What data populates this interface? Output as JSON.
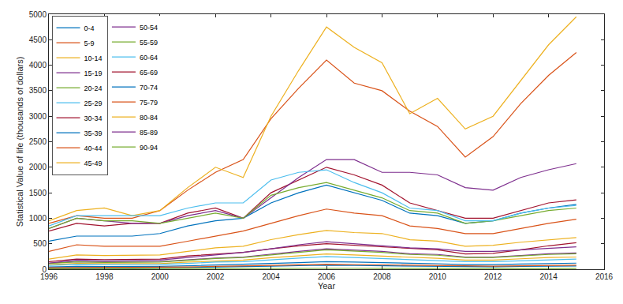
{
  "chart_data": {
    "type": "line",
    "x_label": "Year",
    "y_label": "Statistical Value of life (thousands of dollars)",
    "x": [
      1996,
      1997,
      1998,
      1999,
      2000,
      2001,
      2002,
      2003,
      2004,
      2005,
      2006,
      2007,
      2008,
      2009,
      2010,
      2011,
      2012,
      2013,
      2014,
      2015
    ],
    "xlim": [
      1996,
      2016
    ],
    "xticks": [
      1996,
      1998,
      2000,
      2002,
      2004,
      2006,
      2008,
      2010,
      2012,
      2014,
      2016
    ],
    "ylim": [
      0,
      5000
    ],
    "yticks": [
      0,
      500,
      1000,
      1500,
      2000,
      2500,
      3000,
      3500,
      4000,
      4500,
      5000
    ],
    "grid": false,
    "legend": "upper left",
    "series": [
      {
        "name": "0-4",
        "color": "#0072BD",
        "values": [
          24,
          30,
          29,
          29,
          30,
          37,
          44,
          48,
          60,
          70,
          80,
          74,
          70,
          61,
          58,
          48,
          48,
          54,
          61,
          64
        ]
      },
      {
        "name": "5-9",
        "color": "#D95319",
        "values": [
          350,
          480,
          450,
          450,
          450,
          550,
          650,
          750,
          900,
          1050,
          1180,
          1100,
          1050,
          850,
          800,
          700,
          700,
          800,
          900,
          980
        ]
      },
      {
        "name": "10-14",
        "color": "#EDB120",
        "values": [
          90,
          115,
          110,
          110,
          110,
          140,
          165,
          180,
          225,
          260,
          300,
          280,
          260,
          230,
          215,
          180,
          180,
          205,
          230,
          240
        ]
      },
      {
        "name": "15-19",
        "color": "#7E2F8E",
        "values": [
          120,
          150,
          145,
          145,
          150,
          185,
          220,
          240,
          300,
          350,
          400,
          370,
          350,
          305,
          290,
          240,
          240,
          270,
          305,
          320
        ]
      },
      {
        "name": "20-24",
        "color": "#77AC30",
        "values": [
          115,
          145,
          135,
          135,
          140,
          175,
          210,
          230,
          285,
          330,
          380,
          355,
          330,
          290,
          275,
          230,
          230,
          260,
          290,
          305
        ]
      },
      {
        "name": "25-29",
        "color": "#4DBEEE",
        "values": [
          75,
          95,
          90,
          90,
          95,
          115,
          140,
          150,
          190,
          220,
          250,
          230,
          220,
          190,
          180,
          150,
          150,
          170,
          190,
          200
        ]
      },
      {
        "name": "30-34",
        "color": "#A2142F",
        "values": [
          750,
          900,
          850,
          900,
          900,
          1100,
          1200,
          1000,
          1500,
          1750,
          2000,
          1850,
          1650,
          1300,
          1150,
          1000,
          1000,
          1150,
          1300,
          1360
        ]
      },
      {
        "name": "35-39",
        "color": "#0072BD",
        "values": [
          550,
          650,
          650,
          650,
          700,
          850,
          950,
          1000,
          1300,
          1500,
          1650,
          1500,
          1350,
          1100,
          1050,
          900,
          950,
          1100,
          1200,
          1270
        ]
      },
      {
        "name": "40-44",
        "color": "#D95319",
        "values": [
          900,
          1050,
          1000,
          1000,
          1150,
          1550,
          1900,
          2150,
          2950,
          3550,
          4100,
          3650,
          3500,
          3100,
          2800,
          2200,
          2600,
          3250,
          3800,
          4250
        ]
      },
      {
        "name": "45-49",
        "color": "#EDB120",
        "values": [
          950,
          1150,
          1200,
          1050,
          1150,
          1600,
          2000,
          1800,
          3000,
          3900,
          4750,
          4350,
          4050,
          3050,
          3350,
          2750,
          3000,
          3700,
          4400,
          4950
        ]
      },
      {
        "name": "50-54",
        "color": "#7E2F8E",
        "values": [
          800,
          1000,
          950,
          900,
          900,
          1050,
          1150,
          1000,
          1400,
          1800,
          2150,
          2150,
          1900,
          1900,
          1850,
          1600,
          1550,
          1800,
          1950,
          2070
        ]
      },
      {
        "name": "55-59",
        "color": "#77AC30",
        "values": [
          800,
          1000,
          950,
          950,
          900,
          1000,
          1100,
          1000,
          1450,
          1600,
          1700,
          1550,
          1400,
          1150,
          1100,
          900,
          950,
          1050,
          1150,
          1200
        ]
      },
      {
        "name": "60-64",
        "color": "#4DBEEE",
        "values": [
          850,
          1050,
          1050,
          1050,
          1050,
          1200,
          1300,
          1300,
          1750,
          1900,
          1950,
          1700,
          1500,
          1200,
          1150,
          950,
          950,
          1100,
          1200,
          1250
        ]
      },
      {
        "name": "65-69",
        "color": "#A2142F",
        "values": [
          150,
          200,
          190,
          190,
          200,
          260,
          300,
          330,
          400,
          460,
          500,
          470,
          440,
          400,
          380,
          300,
          310,
          380,
          460,
          520
        ]
      },
      {
        "name": "70-74",
        "color": "#0072BD",
        "values": [
          45,
          57,
          54,
          54,
          56,
          69,
          83,
          90,
          113,
          131,
          150,
          140,
          131,
          114,
          108,
          90,
          90,
          102,
          114,
          120
        ]
      },
      {
        "name": "75-79",
        "color": "#D95319",
        "values": [
          30,
          38,
          36,
          36,
          37,
          46,
          55,
          60,
          75,
          87,
          100,
          93,
          87,
          76,
          72,
          60,
          60,
          68,
          76,
          80
        ]
      },
      {
        "name": "80-84",
        "color": "#EDB120",
        "values": [
          200,
          280,
          270,
          270,
          280,
          350,
          420,
          450,
          580,
          680,
          760,
          720,
          700,
          580,
          550,
          450,
          470,
          530,
          580,
          620
        ]
      },
      {
        "name": "85-89",
        "color": "#7E2F8E",
        "values": [
          120,
          180,
          170,
          170,
          180,
          230,
          280,
          330,
          400,
          480,
          540,
          500,
          450,
          420,
          400,
          350,
          350,
          380,
          420,
          440
        ]
      },
      {
        "name": "90-94",
        "color": "#77AC30",
        "values": [
          6,
          8,
          7,
          7,
          7,
          9,
          11,
          12,
          15,
          17,
          20,
          19,
          17,
          15,
          14,
          12,
          12,
          14,
          15,
          16
        ]
      }
    ]
  }
}
